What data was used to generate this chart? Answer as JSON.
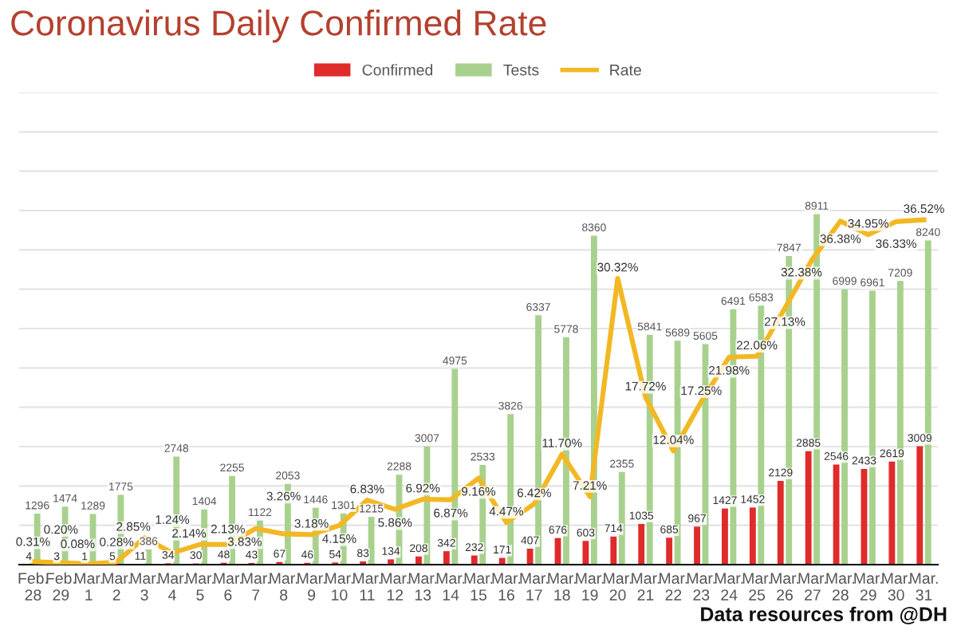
{
  "chart_data": {
    "type": "bar",
    "title": "Coronavirus Daily Confirmed Rate",
    "categories": [
      "Feb. 28",
      "Feb. 29",
      "Mar. 1",
      "Mar. 2",
      "Mar. 3",
      "Mar. 4",
      "Mar. 5",
      "Mar. 6",
      "Mar. 7",
      "Mar. 8",
      "Mar. 9",
      "Mar. 10",
      "Mar. 11",
      "Mar. 12",
      "Mar. 13",
      "Mar. 14",
      "Mar. 15",
      "Mar. 16",
      "Mar. 17",
      "Mar. 18",
      "Mar. 19",
      "Mar. 20",
      "Mar. 21",
      "Mar. 22",
      "Mar. 23",
      "Mar. 24",
      "Mar. 25",
      "Mar. 26",
      "Mar. 27",
      "Mar. 28",
      "Mar. 29",
      "Mar. 30",
      "Mar. 31"
    ],
    "series": [
      {
        "name": "Confirmed",
        "color": "#e02b2b",
        "values": [
          4,
          3,
          1,
          5,
          11,
          34,
          30,
          48,
          43,
          67,
          46,
          54,
          83,
          134,
          208,
          342,
          232,
          171,
          407,
          676,
          603,
          714,
          1035,
          685,
          967,
          1427,
          1452,
          2129,
          2885,
          2546,
          2433,
          2619,
          3009
        ],
        "value_labels": [
          "4",
          "3",
          "1",
          "5",
          "11",
          "34",
          "30",
          "48",
          "43",
          "67",
          "46",
          "54",
          "83",
          "134",
          "208",
          "342",
          "232",
          "171",
          "407",
          "676",
          "603",
          "714",
          "1035",
          "685",
          "967",
          "1427",
          "1452",
          "2129",
          "2885",
          "2546",
          "2433",
          "2619",
          "3009"
        ]
      },
      {
        "name": "Tests",
        "color": "#a9d18e",
        "values": [
          1296,
          1474,
          1289,
          1775,
          386,
          2748,
          1404,
          2255,
          1122,
          2053,
          1446,
          1301,
          1215,
          2288,
          3007,
          4975,
          2533,
          3826,
          6337,
          5778,
          8360,
          2355,
          5841,
          5689,
          5605,
          6491,
          6583,
          7847,
          8911,
          6999,
          6961,
          7209,
          8240
        ],
        "value_labels": [
          "1296",
          "1474",
          "1289",
          "1775",
          "386",
          "2748",
          "1404",
          "2255",
          "1122",
          "2053",
          "1446",
          "1301",
          "1215",
          "2288",
          "3007",
          "4975",
          "2533",
          "3826",
          "6337",
          "5778",
          "8360",
          "2355",
          "5841",
          "5689",
          "5605",
          "6491",
          "6583",
          "7847",
          "8911",
          "6999",
          "6961",
          "7209",
          "8240"
        ]
      },
      {
        "name": "Rate",
        "type": "line",
        "axis": "y2",
        "color": "#f2b824",
        "values": [
          0.31,
          0.2,
          0.08,
          0.28,
          2.85,
          1.24,
          2.14,
          2.13,
          3.83,
          3.26,
          3.18,
          4.15,
          6.83,
          5.86,
          6.92,
          6.87,
          9.16,
          4.47,
          6.42,
          11.7,
          7.21,
          30.32,
          17.72,
          12.04,
          17.25,
          21.98,
          22.06,
          27.13,
          32.38,
          36.38,
          34.95,
          36.33,
          36.52
        ],
        "value_labels": [
          "0.31%",
          "0.20%",
          "0.08%",
          "0.28%",
          "2.85%",
          "1.24%",
          "2.14%",
          "2.13%",
          "3.83%",
          "3.26%",
          "3.18%",
          "4.15%",
          "6.83%",
          "5.86%",
          "6.92%",
          "6.87%",
          "9.16%",
          "4.47%",
          "6.42%",
          "11.70%",
          "7.21%",
          "30.32%",
          "17.72%",
          "12.04%",
          "17.25%",
          "21.98%",
          "22.06%",
          "27.13%",
          "32.38%",
          "36.38%",
          "34.95%",
          "36.33%",
          "36.52%"
        ]
      }
    ],
    "ylim": [
      0,
      12000
    ],
    "yticks": [
      {
        "value": 0,
        "label": null
      },
      {
        "value": 1000,
        "label": null
      },
      {
        "value": 2000,
        "label": null
      },
      {
        "value": 3000,
        "label": null
      },
      {
        "value": 4000,
        "label": null
      },
      {
        "value": 5000,
        "label": null
      },
      {
        "value": 6000,
        "label": null
      },
      {
        "value": 7000,
        "label": null
      },
      {
        "value": 8000,
        "label": null
      },
      {
        "value": 9000,
        "label": null
      },
      {
        "value": 10000,
        "label": null
      },
      {
        "value": 11000,
        "label": null
      },
      {
        "value": 12000,
        "label": null
      }
    ],
    "y2lim": [
      0,
      50
    ],
    "grid": "y",
    "legend": "top",
    "tick_labels": "x",
    "marker": "none",
    "line_style": "solid",
    "annotations": [
      "Data resources from @DH"
    ]
  }
}
